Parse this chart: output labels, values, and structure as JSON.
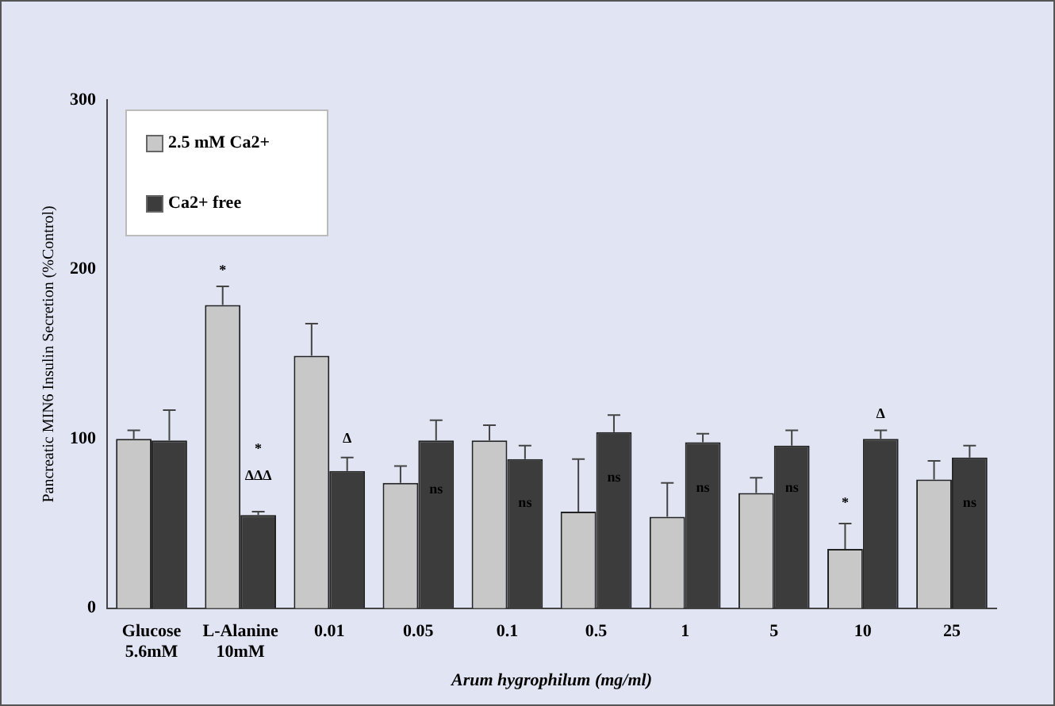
{
  "chart_data": {
    "type": "bar",
    "ylabel": "Pancreatic MIN6 Insulin Secretion (%Control)",
    "xlabel": "Arum hygrophilum (mg/ml)",
    "categories": [
      "Glucose 5.6mM",
      "L-Alanine 10mM",
      "0.01",
      "0.05",
      "0.1",
      "0.5",
      "1",
      "5",
      "10",
      "25"
    ],
    "series": [
      {
        "name": "2.5 mM Ca2+",
        "color": "#c8c8c8",
        "values": [
          100,
          179,
          149,
          74,
          99,
          57,
          54,
          68,
          35,
          76
        ],
        "errors": [
          [
            100,
            105
          ],
          [
            179,
            190
          ],
          [
            149,
            168
          ],
          [
            74,
            84
          ],
          [
            99,
            108
          ],
          [
            57,
            88
          ],
          [
            54,
            74
          ],
          [
            68,
            77
          ],
          [
            35,
            50
          ],
          [
            76,
            87
          ]
        ]
      },
      {
        "name": "Ca2+ free",
        "color": "#3c3c3c",
        "values": [
          99,
          55,
          81,
          99,
          88,
          104,
          98,
          96,
          100,
          89
        ],
        "errors": [
          [
            99,
            117
          ],
          [
            55,
            57
          ],
          [
            81,
            89
          ],
          [
            99,
            111
          ],
          [
            88,
            96
          ],
          [
            104,
            114
          ],
          [
            98,
            103
          ],
          [
            96,
            105
          ],
          [
            100,
            105
          ],
          [
            89,
            96
          ]
        ]
      }
    ],
    "ylim": [
      0,
      300
    ],
    "yticks": [
      0,
      100,
      200,
      300
    ],
    "grid": false,
    "legend": "top left",
    "annotations": [
      {
        "text": "*",
        "x": "L-Alanine 10mM",
        "y": 179
      },
      {
        "text": "*",
        "x": "L-Alanine 10mM",
        "y": 94
      },
      {
        "text": "ΔΔΔ",
        "x": "L-Alanine 10mM",
        "y": 78
      },
      {
        "text": "Δ",
        "x": "0.01",
        "y": 100
      },
      {
        "text": "ns",
        "x": "0.05",
        "y": 70
      },
      {
        "text": "ns",
        "x": "0.1",
        "y": 62
      },
      {
        "text": "ns",
        "x": "0.5",
        "y": 77
      },
      {
        "text": "ns",
        "x": "1",
        "y": 71
      },
      {
        "text": "ns",
        "x": "5",
        "y": 71
      },
      {
        "text": "*",
        "x": "10",
        "y": 62
      },
      {
        "text": "Δ",
        "x": "10",
        "y": 100
      },
      {
        "text": "ns",
        "x": "25",
        "y": 62
      }
    ]
  }
}
